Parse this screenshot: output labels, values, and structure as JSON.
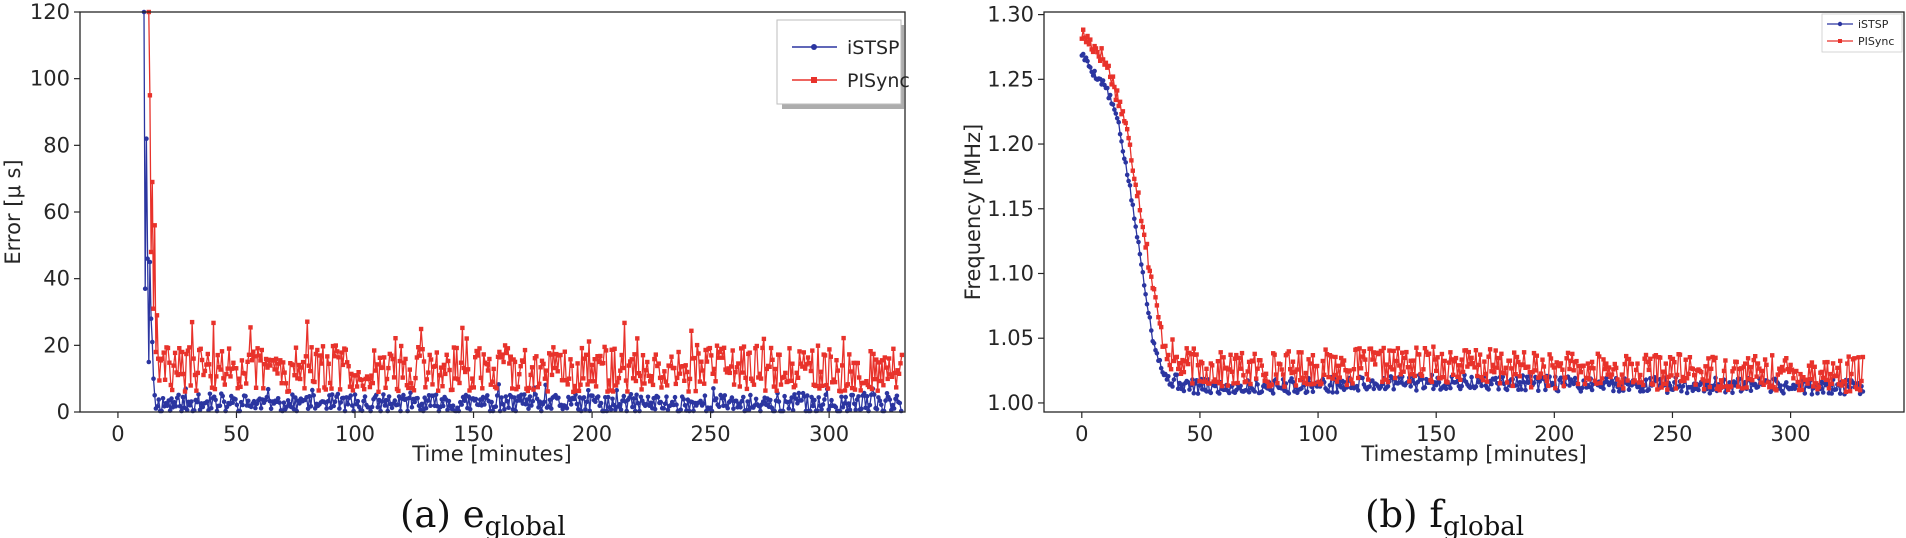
{
  "chart_data": [
    {
      "type": "line",
      "caption_prefix": "(a) e",
      "caption_sub": "global",
      "xlabel": "Time [minutes]",
      "ylabel": "Error [μ s]",
      "xlim": [
        -16,
        332
      ],
      "ylim": [
        0,
        120
      ],
      "xticks": [
        0,
        50,
        100,
        150,
        200,
        250,
        300
      ],
      "yticks": [
        0,
        20,
        40,
        60,
        80,
        100,
        120
      ],
      "legend_position": "top-right",
      "series": [
        {
          "name": "iSTSP",
          "color": "#2b35a0",
          "marker": "circle",
          "startup": [
            [
              11,
              120
            ],
            [
              11.5,
              37
            ],
            [
              12,
              82
            ],
            [
              12.5,
              46
            ],
            [
              13,
              15
            ],
            [
              13.5,
              45
            ],
            [
              14,
              28
            ],
            [
              14.5,
              21
            ],
            [
              15,
              10
            ],
            [
              15.5,
              5
            ]
          ],
          "steady": {
            "start": 16,
            "end": 331,
            "step": 0.6,
            "base": 2.5,
            "spread": 2.8,
            "seed": 11
          }
        },
        {
          "name": "PISync",
          "color": "#e8322b",
          "marker": "square",
          "startup": [
            [
              13,
              120
            ],
            [
              13.5,
              95
            ],
            [
              14,
              48
            ],
            [
              14.5,
              69
            ],
            [
              15,
              31
            ],
            [
              15.5,
              56
            ],
            [
              16,
              18
            ],
            [
              16.5,
              29
            ],
            [
              17,
              16
            ]
          ],
          "steady": {
            "start": 17.5,
            "end": 331,
            "step": 0.6,
            "base": 13,
            "spread": 7,
            "seed": 29
          }
        }
      ]
    },
    {
      "type": "line",
      "caption_prefix": "(b) f",
      "caption_sub": "global",
      "xlabel": "Timestamp [minutes]",
      "ylabel": "Frequency [MHz]",
      "xlim": [
        -16,
        348
      ],
      "ylim": [
        0.993,
        1.302
      ],
      "xticks": [
        0,
        50,
        100,
        150,
        200,
        250,
        300
      ],
      "yticks": [
        1.0,
        1.05,
        1.1,
        1.15,
        1.2,
        1.25,
        1.3
      ],
      "ytick_labels": [
        "1.00",
        "1.05",
        "1.10",
        "1.15",
        "1.20",
        "1.25",
        "1.30"
      ],
      "legend_position": "top-right",
      "series": [
        {
          "name": "iSTSP",
          "color": "#2b35a0",
          "marker": "circle",
          "curve_points": [
            [
              0,
              1.27
            ],
            [
              5,
              1.255
            ],
            [
              10,
              1.245
            ],
            [
              15,
              1.22
            ],
            [
              20,
              1.17
            ],
            [
              25,
              1.11
            ],
            [
              30,
              1.05
            ],
            [
              35,
              1.02
            ],
            [
              45,
              1.013
            ],
            [
              60,
              1.012
            ],
            [
              150,
              1.016
            ],
            [
              330,
              1.012
            ]
          ],
          "curve_end": 331,
          "noise": 0.006,
          "seed": 5
        },
        {
          "name": "PISync",
          "color": "#e8322b",
          "marker": "square",
          "curve_points": [
            [
              0,
              1.285
            ],
            [
              8,
              1.27
            ],
            [
              12,
              1.255
            ],
            [
              18,
              1.22
            ],
            [
              24,
              1.16
            ],
            [
              30,
              1.09
            ],
            [
              34,
              1.05
            ],
            [
              40,
              1.03
            ],
            [
              60,
              1.025
            ],
            [
              150,
              1.03
            ],
            [
              200,
              1.025
            ],
            [
              330,
              1.022
            ]
          ],
          "curve_end": 331,
          "noise": 0.014,
          "seed": 17
        }
      ]
    }
  ]
}
